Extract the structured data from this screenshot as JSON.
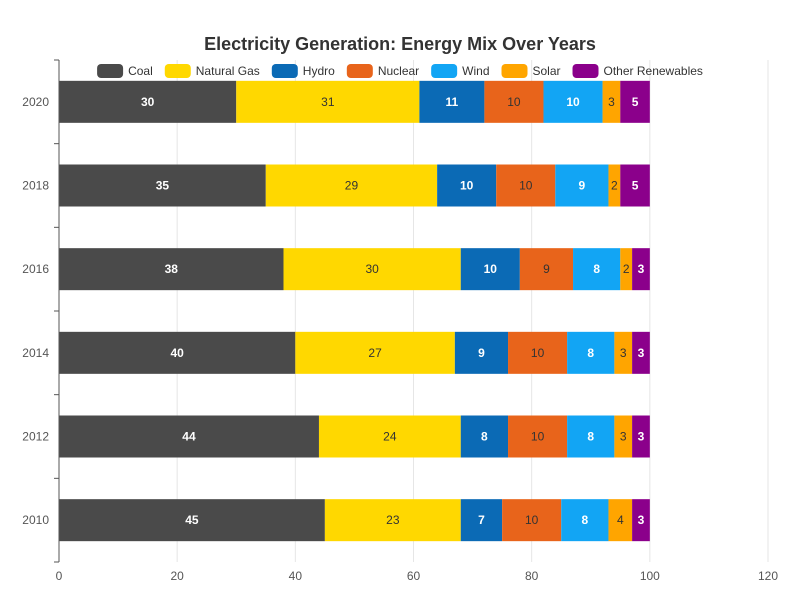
{
  "chart_data": {
    "type": "bar",
    "orientation": "horizontal",
    "stacked": true,
    "title": "Electricity Generation: Energy Mix Over Years",
    "categories": [
      "2010",
      "2012",
      "2014",
      "2016",
      "2018",
      "2020"
    ],
    "series": [
      {
        "name": "Coal",
        "color": "#4a4a4a",
        "label_color": "#ffffff",
        "values": [
          45,
          44,
          40,
          38,
          35,
          30
        ]
      },
      {
        "name": "Natural Gas",
        "color": "#ffd800",
        "label_color": "#333333",
        "values": [
          23,
          24,
          27,
          30,
          29,
          31
        ]
      },
      {
        "name": "Hydro",
        "color": "#0b6ab5",
        "label_color": "#ffffff",
        "values": [
          7,
          8,
          9,
          10,
          10,
          11
        ]
      },
      {
        "name": "Nuclear",
        "color": "#e8641b",
        "label_color": "#333333",
        "values": [
          10,
          10,
          10,
          9,
          10,
          10
        ]
      },
      {
        "name": "Wind",
        "color": "#12a5f4",
        "label_color": "#ffffff",
        "values": [
          8,
          8,
          8,
          8,
          9,
          10
        ]
      },
      {
        "name": "Solar",
        "color": "#ffa500",
        "label_color": "#333333",
        "values": [
          4,
          3,
          3,
          2,
          2,
          3
        ]
      },
      {
        "name": "Other Renewables",
        "color": "#8b008b",
        "label_color": "#ffffff",
        "values": [
          3,
          3,
          3,
          3,
          5,
          5
        ]
      }
    ],
    "x_ticks": [
      0,
      20,
      40,
      60,
      80,
      100,
      120
    ],
    "xlim": [
      0,
      120
    ],
    "xlabel": "",
    "ylabel": "",
    "grid": true,
    "legend_position": "top"
  }
}
